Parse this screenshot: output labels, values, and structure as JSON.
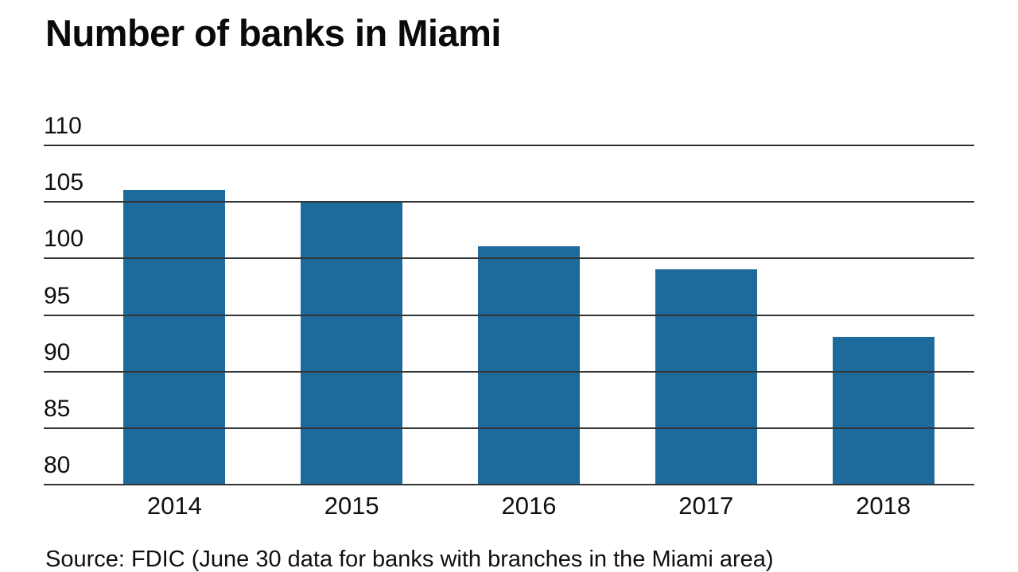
{
  "title": "Number of banks in Miami",
  "source": "Source: FDIC (June 30 data for banks with branches in the Miami area)",
  "chart_data": {
    "type": "bar",
    "title": "Number of banks in Miami",
    "categories": [
      "2014",
      "2015",
      "2016",
      "2017",
      "2018"
    ],
    "values": [
      106,
      105,
      101,
      99,
      93
    ],
    "xlabel": "",
    "ylabel": "",
    "ylim": [
      80,
      110
    ],
    "yticks": [
      110,
      105,
      100,
      95,
      90,
      85,
      80
    ],
    "bar_color": "#1e6a9c",
    "grid": true,
    "legend": "none",
    "source": "Source: FDIC (June 30 data for banks with branches in the Miami area)"
  }
}
